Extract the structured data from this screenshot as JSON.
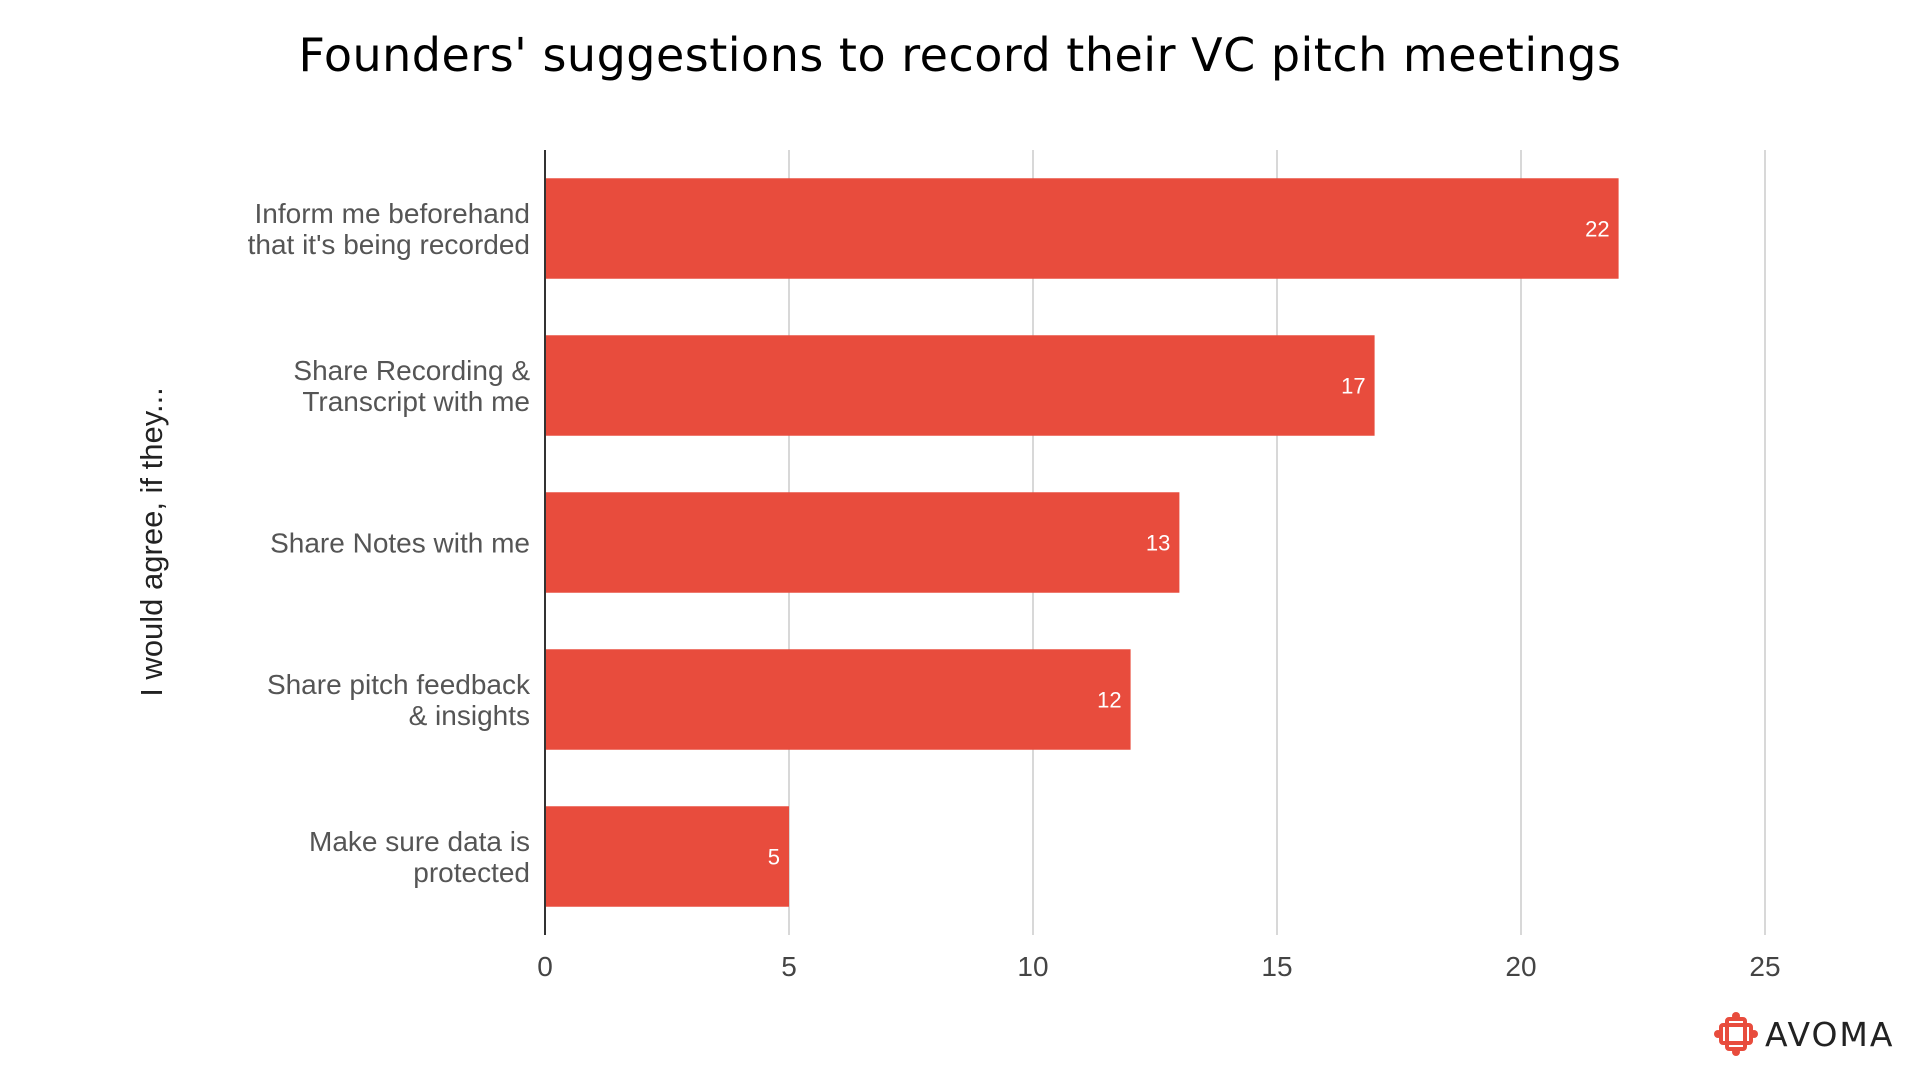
{
  "chart_data": {
    "type": "bar",
    "orientation": "horizontal",
    "title": "Founders' suggestions to record their VC pitch meetings",
    "xlabel": "",
    "ylabel": "I would agree, if they...",
    "xlim": [
      0,
      25
    ],
    "xticks": [
      "0",
      "5",
      "10",
      "15",
      "20",
      "25"
    ],
    "grid": true,
    "categories": [
      [
        "Inform me beforehand",
        "that it's being recorded"
      ],
      [
        "Share Recording &",
        "Transcript with me"
      ],
      [
        "Share Notes with me"
      ],
      [
        "Share pitch feedback",
        "& insights"
      ],
      [
        "Make sure data is",
        "protected"
      ]
    ],
    "values": [
      22,
      17,
      13,
      12,
      5
    ],
    "bar_color": "#E84C3D"
  },
  "branding": {
    "logo_text": "AVOMA",
    "logo_color": "#E84C3D"
  }
}
